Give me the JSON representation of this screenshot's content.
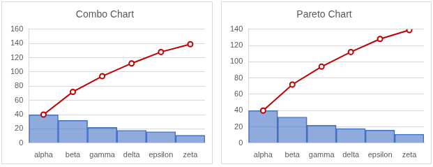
{
  "chart_data": [
    {
      "type": "bar",
      "title": "Combo Chart",
      "categories": [
        "alpha",
        "beta",
        "gamma",
        "delta",
        "epsilon",
        "zeta"
      ],
      "series": [
        {
          "type": "bar",
          "color": "#4472c4",
          "values": [
            40,
            32,
            22,
            18,
            16,
            11
          ]
        },
        {
          "type": "line",
          "color": "#c00000",
          "marker": "circle",
          "values": [
            40,
            72,
            94,
            112,
            128,
            139
          ]
        }
      ],
      "ylim": [
        0,
        160
      ],
      "yticks": [
        0,
        20,
        40,
        60,
        80,
        100,
        120,
        140,
        160
      ],
      "grid": true
    },
    {
      "type": "bar",
      "title": "Pareto Chart",
      "categories": [
        "alpha",
        "beta",
        "gamma",
        "delta",
        "epsilon",
        "zeta"
      ],
      "series": [
        {
          "type": "bar",
          "color": "#4472c4",
          "values": [
            40,
            32,
            22,
            18,
            16,
            11
          ]
        },
        {
          "type": "line",
          "color": "#c00000",
          "marker": "circle",
          "values": [
            40,
            72,
            94,
            112,
            128,
            139
          ]
        }
      ],
      "ylim": [
        0,
        140
      ],
      "yticks": [
        0,
        20,
        40,
        60,
        80,
        100,
        120,
        140
      ],
      "grid": true
    }
  ]
}
